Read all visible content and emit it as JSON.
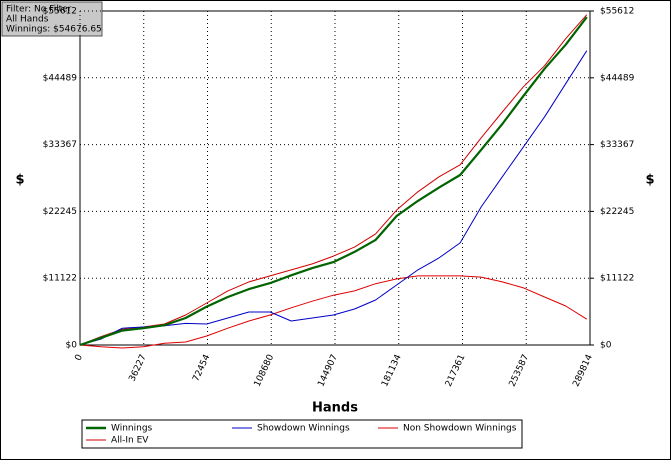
{
  "chart_data": {
    "type": "line",
    "annotations": [
      "Filter: No Filter",
      "All Hands",
      "Winnings: $54676.65"
    ],
    "x_label": "Hands",
    "y_label": "$",
    "y2_label": "$",
    "x": [
      0,
      12000,
      24000,
      36000,
      48000,
      60000,
      72000,
      84000,
      96000,
      108000,
      120000,
      132000,
      144000,
      156000,
      168000,
      180000,
      192000,
      204000,
      216000,
      228000,
      240000,
      252000,
      264000,
      276000,
      288000
    ],
    "series": [
      {
        "name": "Winnings",
        "color": "#006400",
        "values": [
          0,
          1200,
          2400,
          2800,
          3300,
          4500,
          6400,
          8000,
          9300,
          10300,
          11600,
          12800,
          13800,
          15500,
          17500,
          21500,
          24000,
          26200,
          28300,
          32500,
          36800,
          41500,
          46000,
          50000,
          54600
        ]
      },
      {
        "name": "Showdown Winnings",
        "color": "#0000c8",
        "values": [
          0,
          1000,
          2800,
          3000,
          3200,
          3600,
          3500,
          4500,
          5500,
          5500,
          4000,
          4500,
          5000,
          6000,
          7500,
          10000,
          12500,
          14500,
          17000,
          23000,
          28000,
          33000,
          38000,
          43500,
          49000
        ]
      },
      {
        "name": "Non Showdown Winnings",
        "color": "#e00000",
        "values": [
          0,
          -300,
          -500,
          -300,
          300,
          500,
          1500,
          2800,
          4000,
          5000,
          6200,
          7300,
          8300,
          9000,
          10200,
          11000,
          11500,
          11500,
          11500,
          11300,
          10500,
          9500,
          8000,
          6500,
          4300
        ]
      },
      {
        "name": "All-In EV",
        "color": "#d00000",
        "values": [
          0,
          1400,
          2600,
          3000,
          3500,
          5000,
          7000,
          9000,
          10500,
          11500,
          12500,
          13500,
          14800,
          16300,
          18500,
          22500,
          25500,
          28000,
          30000,
          34500,
          38800,
          43000,
          46500,
          51000,
          55000
        ]
      }
    ],
    "xlim": [
      0,
      289814
    ],
    "xticks": [
      0,
      36227,
      72454,
      108680,
      144907,
      181134,
      217361,
      253587,
      289814
    ],
    "ylim": [
      0,
      55612
    ],
    "yticks": [
      {
        "value": 0,
        "label": "$0"
      },
      {
        "value": 11122,
        "label": "$11122"
      },
      {
        "value": 22245,
        "label": "$22245"
      },
      {
        "value": 33367,
        "label": "$33367"
      },
      {
        "value": 44489,
        "label": "$44489"
      },
      {
        "value": 55612,
        "label": "$55612"
      }
    ],
    "y2lim": [
      0,
      55612
    ],
    "y2ticks": [
      {
        "value": 0,
        "label": "$0"
      },
      {
        "value": 11122,
        "label": "$11122"
      },
      {
        "value": 22245,
        "label": "$22245"
      },
      {
        "value": 33367,
        "label": "$33367"
      },
      {
        "value": 44489,
        "label": "$44489"
      },
      {
        "value": 55612,
        "label": "$55612"
      }
    ],
    "grid": true,
    "legend": "bottom"
  }
}
